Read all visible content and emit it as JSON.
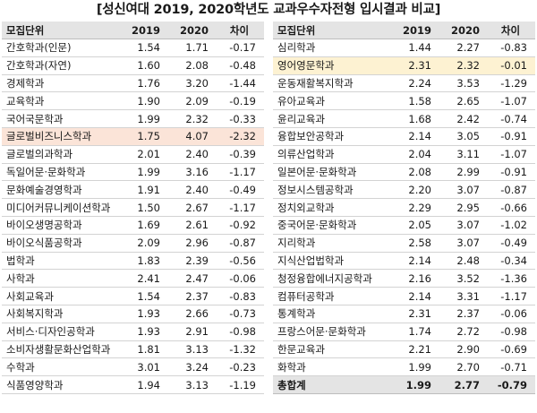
{
  "title": "[성신여대 2019, 2020학년도 교과우수자전형 입시결과 비교]",
  "headers": {
    "dept": "모집단위",
    "y2019": "2019",
    "y2020": "2020",
    "diff": "차이"
  },
  "left_rows": [
    {
      "dept": "간호학과(인문)",
      "y2019": "1.54",
      "y2020": "1.71",
      "diff": "-0.17"
    },
    {
      "dept": "간호학과(자연)",
      "y2019": "1.60",
      "y2020": "2.08",
      "diff": "-0.48"
    },
    {
      "dept": "경제학과",
      "y2019": "1.76",
      "y2020": "3.20",
      "diff": "-1.44"
    },
    {
      "dept": "교육학과",
      "y2019": "1.90",
      "y2020": "2.09",
      "diff": "-0.19"
    },
    {
      "dept": "국어국문학과",
      "y2019": "1.99",
      "y2020": "2.32",
      "diff": "-0.33"
    },
    {
      "dept": "글로벌비즈니스학과",
      "y2019": "1.75",
      "y2020": "4.07",
      "diff": "-2.32",
      "highlight": "red"
    },
    {
      "dept": "글로벌의과학과",
      "y2019": "2.01",
      "y2020": "2.40",
      "diff": "-0.39"
    },
    {
      "dept": "독일어문·문화학과",
      "y2019": "1.99",
      "y2020": "3.16",
      "diff": "-1.17"
    },
    {
      "dept": "문화예술경영학과",
      "y2019": "1.91",
      "y2020": "2.40",
      "diff": "-0.49"
    },
    {
      "dept": "미디어커뮤니케이션학과",
      "y2019": "1.50",
      "y2020": "2.67",
      "diff": "-1.17"
    },
    {
      "dept": "바이오생명공학과",
      "y2019": "1.69",
      "y2020": "2.61",
      "diff": "-0.92"
    },
    {
      "dept": "바이오식품공학과",
      "y2019": "2.09",
      "y2020": "2.96",
      "diff": "-0.87"
    },
    {
      "dept": "법학과",
      "y2019": "1.83",
      "y2020": "2.39",
      "diff": "-0.56"
    },
    {
      "dept": "사학과",
      "y2019": "2.41",
      "y2020": "2.47",
      "diff": "-0.06"
    },
    {
      "dept": "사회교육과",
      "y2019": "1.54",
      "y2020": "2.37",
      "diff": "-0.83"
    },
    {
      "dept": "사회복지학과",
      "y2019": "1.93",
      "y2020": "2.66",
      "diff": "-0.73"
    },
    {
      "dept": "서비스·디자인공학과",
      "y2019": "1.93",
      "y2020": "2.91",
      "diff": "-0.98"
    },
    {
      "dept": "소비자생활문화산업학과",
      "y2019": "1.81",
      "y2020": "3.13",
      "diff": "-1.32"
    },
    {
      "dept": "수학과",
      "y2019": "3.01",
      "y2020": "3.24",
      "diff": "-0.23"
    },
    {
      "dept": "식품영양학과",
      "y2019": "1.94",
      "y2020": "3.13",
      "diff": "-1.19"
    }
  ],
  "right_rows": [
    {
      "dept": "심리학과",
      "y2019": "1.44",
      "y2020": "2.27",
      "diff": "-0.83"
    },
    {
      "dept": "영어영문학과",
      "y2019": "2.31",
      "y2020": "2.32",
      "diff": "-0.01",
      "highlight": "yellow"
    },
    {
      "dept": "운동재활복지학과",
      "y2019": "2.24",
      "y2020": "3.53",
      "diff": "-1.29"
    },
    {
      "dept": "유아교육과",
      "y2019": "1.58",
      "y2020": "2.65",
      "diff": "-1.07"
    },
    {
      "dept": "윤리교육과",
      "y2019": "1.68",
      "y2020": "2.42",
      "diff": "-0.74"
    },
    {
      "dept": "융합보안공학과",
      "y2019": "2.14",
      "y2020": "3.05",
      "diff": "-0.91"
    },
    {
      "dept": "의류산업학과",
      "y2019": "2.04",
      "y2020": "3.11",
      "diff": "-1.07"
    },
    {
      "dept": "일본어문·문화학과",
      "y2019": "2.08",
      "y2020": "2.99",
      "diff": "-0.91"
    },
    {
      "dept": "정보시스템공학과",
      "y2019": "2.20",
      "y2020": "3.07",
      "diff": "-0.87"
    },
    {
      "dept": "정치외교학과",
      "y2019": "2.29",
      "y2020": "2.95",
      "diff": "-0.66"
    },
    {
      "dept": "중국어문·문화학과",
      "y2019": "2.05",
      "y2020": "3.07",
      "diff": "-1.02"
    },
    {
      "dept": "지리학과",
      "y2019": "2.58",
      "y2020": "3.07",
      "diff": "-0.49"
    },
    {
      "dept": "지식산업법학과",
      "y2019": "2.14",
      "y2020": "2.48",
      "diff": "-0.34"
    },
    {
      "dept": "청정융합에너지공학과",
      "y2019": "2.16",
      "y2020": "3.52",
      "diff": "-1.36"
    },
    {
      "dept": "컴퓨터공학과",
      "y2019": "2.14",
      "y2020": "3.31",
      "diff": "-1.17"
    },
    {
      "dept": "통계학과",
      "y2019": "2.31",
      "y2020": "2.37",
      "diff": "-0.06"
    },
    {
      "dept": "프랑스어문·문화학과",
      "y2019": "1.74",
      "y2020": "2.72",
      "diff": "-0.98"
    },
    {
      "dept": "한문교육과",
      "y2019": "2.21",
      "y2020": "2.90",
      "diff": "-0.69"
    },
    {
      "dept": "화학과",
      "y2019": "1.99",
      "y2020": "2.70",
      "diff": "-0.71"
    },
    {
      "dept": "총합계",
      "y2019": "1.99",
      "y2020": "2.77",
      "diff": "-0.79",
      "total": true
    }
  ]
}
